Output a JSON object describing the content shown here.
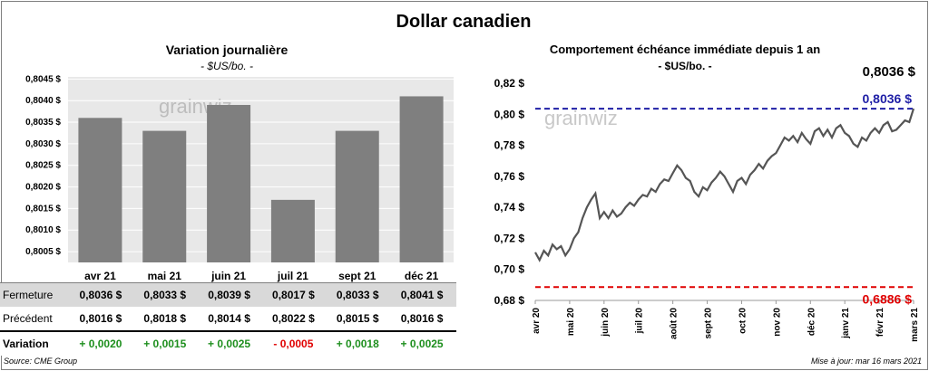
{
  "title": "Dollar canadien",
  "left": {
    "subtitle": "Variation  journalière",
    "unit": "- $US/bo. -",
    "watermark": "grainwiz",
    "chart_data": {
      "type": "bar",
      "categories": [
        "avr 21",
        "mai 21",
        "juin 21",
        "juil 21",
        "sept 21",
        "déc 21"
      ],
      "values": [
        0.8036,
        0.8033,
        0.8039,
        0.8017,
        0.8033,
        0.8041
      ],
      "ylim": [
        0.80025,
        0.80455
      ],
      "yticks": [
        0.8005,
        0.801,
        0.8015,
        0.802,
        0.8025,
        0.803,
        0.8035,
        0.804,
        0.8045
      ],
      "ytick_labels": [
        "0,8005 $",
        "0,8010 $",
        "0,8015 $",
        "0,8020 $",
        "0,8025 $",
        "0,8030 $",
        "0,8035 $",
        "0,8040 $",
        "0,8045 $"
      ],
      "color": "#7f7f7f",
      "grid": true
    },
    "table": {
      "rows": [
        {
          "label": "Fermeture",
          "values": [
            "0,8036  $",
            "0,8033  $",
            "0,8039  $",
            "0,8017  $",
            "0,8033  $",
            "0,8041  $"
          ],
          "bg": "#d9d9d9"
        },
        {
          "label": "Précédent",
          "values": [
            "0,8016  $",
            "0,8018  $",
            "0,8014  $",
            "0,8022  $",
            "0,8015  $",
            "0,8016  $"
          ],
          "bg": "#ffffff"
        },
        {
          "label": "Variation",
          "values": [
            "+ 0,0020",
            "+ 0,0015",
            "+ 0,0025",
            "- 0,0005",
            "+ 0,0018",
            "+ 0,0025"
          ],
          "bg": "#ffffff",
          "colors": [
            "#1e8f1e",
            "#1e8f1e",
            "#1e8f1e",
            "#e00000",
            "#1e8f1e",
            "#1e8f1e"
          ]
        }
      ]
    }
  },
  "right": {
    "subtitle": "Comportement échéance immédiate depuis 1 an",
    "unit": "- $US/bo. -",
    "watermark": "grainwiz",
    "chart_data": {
      "type": "line",
      "xlabels": [
        "avr 20",
        "mai 20",
        "juin 20",
        "juil 20",
        "août 20",
        "sept 20",
        "oct 20",
        "nov 20",
        "déc 20",
        "janv 21",
        "févr 21",
        "mars 21"
      ],
      "ylim": [
        0.68,
        0.82
      ],
      "yticks": [
        0.68,
        0.7,
        0.72,
        0.74,
        0.76,
        0.78,
        0.8,
        0.82
      ],
      "ytick_labels": [
        "0,68 $",
        "0,70 $",
        "0,72 $",
        "0,74 $",
        "0,76 $",
        "0,78 $",
        "0,80 $",
        "0,82 $"
      ],
      "x": [
        0,
        4,
        8,
        12,
        16,
        20,
        24,
        28,
        32,
        36,
        40,
        44,
        48,
        52,
        56,
        60,
        64,
        68,
        72,
        76,
        80,
        84,
        88,
        92,
        96,
        100,
        104,
        108,
        112,
        116,
        120,
        124,
        128,
        132,
        136,
        140,
        144,
        148,
        152,
        156,
        160,
        164,
        168,
        172,
        176,
        180,
        184,
        188,
        192,
        196,
        200,
        204,
        208,
        212,
        216,
        220,
        224,
        228,
        232,
        236,
        240,
        244,
        248,
        252,
        256,
        260,
        264,
        268,
        272,
        276,
        280,
        284,
        288,
        292,
        296,
        300,
        304,
        308,
        312,
        316,
        320,
        324,
        328,
        332,
        336,
        340,
        344,
        348,
        352
      ],
      "values": [
        0.711,
        0.706,
        0.712,
        0.709,
        0.716,
        0.713,
        0.715,
        0.709,
        0.713,
        0.72,
        0.724,
        0.733,
        0.74,
        0.745,
        0.749,
        0.733,
        0.737,
        0.733,
        0.738,
        0.734,
        0.736,
        0.74,
        0.743,
        0.741,
        0.745,
        0.748,
        0.747,
        0.752,
        0.75,
        0.755,
        0.758,
        0.757,
        0.762,
        0.767,
        0.764,
        0.759,
        0.757,
        0.75,
        0.747,
        0.753,
        0.751,
        0.756,
        0.759,
        0.763,
        0.76,
        0.755,
        0.75,
        0.757,
        0.759,
        0.755,
        0.761,
        0.764,
        0.768,
        0.765,
        0.77,
        0.773,
        0.775,
        0.78,
        0.785,
        0.783,
        0.786,
        0.782,
        0.788,
        0.784,
        0.781,
        0.789,
        0.791,
        0.786,
        0.79,
        0.785,
        0.791,
        0.793,
        0.788,
        0.786,
        0.781,
        0.779,
        0.785,
        0.783,
        0.788,
        0.791,
        0.788,
        0.793,
        0.795,
        0.789,
        0.79,
        0.793,
        0.796,
        0.795,
        0.8036
      ],
      "x_max": 352,
      "color": "#555555",
      "hlines": [
        {
          "value": 0.8036,
          "label": "0,8036  $",
          "color": "#1f1fa6"
        },
        {
          "value": 0.6886,
          "label": "0,6886  $",
          "color": "#e00000"
        }
      ],
      "last_label": "0,8036 $"
    }
  },
  "footer": {
    "source": "Source: CME Group",
    "updated": "Mise à jour: mar 16 mars 2021"
  }
}
